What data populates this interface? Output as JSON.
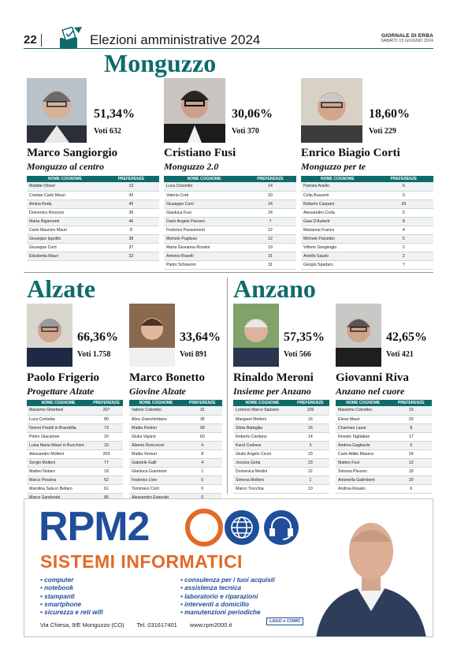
{
  "header": {
    "page_number": "22",
    "section_title": "Elezioni amministrative 2024",
    "masthead_name": "GIORNALE DI ERBA",
    "masthead_date": "SABATO 15 GIUGNO 2024"
  },
  "table_headers": {
    "name": "NOME COGNOME",
    "preferences": "PREFERENZE"
  },
  "monguzzo": {
    "title": "Monguzzo",
    "candidates": [
      {
        "name": "Marco Sangiorgio",
        "list": "Monguzzo al centro",
        "percentage": "51,34%",
        "votes": "Voti 632",
        "rows": [
          [
            "Matilde Oliveri",
            "13"
          ],
          [
            "Cristian Carlo Mauri",
            "43"
          ],
          [
            "Amina Roda",
            "40"
          ],
          [
            "Domenico Ronzoni",
            "36"
          ],
          [
            "Marta Rigamonti",
            "46"
          ],
          [
            "Carlo Maurizio Mauri",
            "8"
          ],
          [
            "Giuseppe Ippolito",
            "38"
          ],
          [
            "Giuseppe Corti",
            "37"
          ],
          [
            "Elisabetta Mauri",
            "33"
          ]
        ]
      },
      {
        "name": "Cristiano Fusi",
        "list": "Monguzzo 2.0",
        "percentage": "30,06%",
        "votes": "Voti 370",
        "rows": [
          [
            "Luca Colombo",
            "14"
          ],
          [
            "Valeria Corti",
            "20"
          ],
          [
            "Giuseppe Corti",
            "24"
          ],
          [
            "Gianluca Fusi",
            "24"
          ],
          [
            "Dario Angelo Panzeri",
            "7"
          ],
          [
            "Federica Passamonti",
            "22"
          ],
          [
            "Michele Pugliese",
            "12"
          ],
          [
            "Marta Giovanna Rossini",
            "19"
          ],
          [
            "Antonio Roselli",
            "31"
          ],
          [
            "Pietro Schiavoni",
            "31"
          ]
        ]
      },
      {
        "name": "Enrico Biagio Corti",
        "list": "Monguzzo per te",
        "percentage": "18,60%",
        "votes": "Voti 229",
        "rows": [
          [
            "Patrizia Anello",
            "6"
          ],
          [
            "Celia Busserti",
            "0"
          ],
          [
            "Roberto Caspani",
            "29"
          ],
          [
            "Alessandro Coda",
            "5"
          ],
          [
            "Gaia D'Auberti",
            "8"
          ],
          [
            "Marianna Franco",
            "4"
          ],
          [
            "Michele Palumbo",
            "5"
          ],
          [
            "Vittorio Sangiorgio",
            "2"
          ],
          [
            "Aniello Saudo",
            "2"
          ],
          [
            "Giorgio Spadaro",
            "7"
          ]
        ]
      }
    ]
  },
  "alzate": {
    "title": "Alzate",
    "candidates": [
      {
        "name": "Paolo Frigerio",
        "list": "Progettare Alzate",
        "percentage": "66,36%",
        "votes": "Voti 1.758",
        "rows": [
          [
            "Massimo Gherbesi",
            "207"
          ],
          [
            "Luca Corbetta",
            "80"
          ],
          [
            "Noemi Freddi in Brambilla",
            "73"
          ],
          [
            "Pietro Giacalone",
            "20"
          ],
          [
            "Luisa Maria Mauri in Bucchieri",
            "33"
          ],
          [
            "Alessandro Molteni",
            "209"
          ],
          [
            "Sergio Molteni",
            "77"
          ],
          [
            "Matteo Notaro",
            "18"
          ],
          [
            "Marco Pessina",
            "62"
          ],
          [
            "Marolina Sala in Bellaro",
            "61"
          ],
          [
            "Marco Sandonigi",
            "86"
          ]
        ]
      },
      {
        "name": "Marco Bonetto",
        "list": "Giovine Alzate",
        "percentage": "33,64%",
        "votes": "Voti 891",
        "rows": [
          [
            "Valerio Colombo",
            "31"
          ],
          [
            "Alice Gianchiottano",
            "36"
          ],
          [
            "Mattia Pedrini",
            "99"
          ],
          [
            "Giulia Viganò",
            "60"
          ],
          [
            "Alberto Roncoroni",
            "4"
          ],
          [
            "Mattia Venturi",
            "8"
          ],
          [
            "Gabriele Galli",
            "4"
          ],
          [
            "Gianluca Guerinoni",
            "1"
          ],
          [
            "Federico Livio",
            "0"
          ],
          [
            "Tommaso Corti",
            "0"
          ],
          [
            "Alessandro Esposito",
            "0"
          ],
          [
            "Davide Nicoli",
            "0"
          ]
        ]
      }
    ]
  },
  "anzano": {
    "title": "Anzano",
    "candidates": [
      {
        "name": "Rinaldo Meroni",
        "list": "Insieme per Anzano",
        "percentage": "57,35%",
        "votes": "Voti 566",
        "rows": [
          [
            "Lorenzo Marco Salzano",
            "109"
          ],
          [
            "Margaret Molteni",
            "16"
          ],
          [
            "Silvia Battaglia",
            "16"
          ],
          [
            "Roberto Cardano",
            "14"
          ],
          [
            "Karol Cedrara",
            "3"
          ],
          [
            "Giulio Angelo Cicori",
            "29"
          ],
          [
            "Jessica Gorla",
            "23"
          ],
          [
            "Domenica Medini",
            "22"
          ],
          [
            "Simona Molteni",
            "1"
          ],
          [
            "Marco Trocchia",
            "10"
          ]
        ]
      },
      {
        "name": "Giovanni Riva",
        "list": "Anzano nel cuore",
        "percentage": "42,65%",
        "votes": "Voti 421",
        "rows": [
          [
            "Massimo Colombo",
            "19"
          ],
          [
            "Elena Mauri",
            "20"
          ],
          [
            "Charmee Lazar",
            "8"
          ],
          [
            "Renato Tagliabue",
            "17"
          ],
          [
            "Andrea Gagliardo",
            "5"
          ],
          [
            "Carlo Attilio Mazera",
            "24"
          ],
          [
            "Matteo Fusi",
            "12"
          ],
          [
            "Simona Pleuren",
            "18"
          ],
          [
            "Antonella Galimberti",
            "20"
          ],
          [
            "Andrea Rosato",
            "6"
          ]
        ]
      }
    ]
  },
  "ad": {
    "brand_left": "RPM2",
    "brand_subtitle": "SISTEMI INFORMATICI",
    "services_left": [
      "computer",
      "notebook",
      "stampanti",
      "smartphone",
      "sicurezza e reti wifi"
    ],
    "services_right": [
      "consulenza per i tuoi acquisti",
      "assistenza tecnica",
      "laboratorio e riparazioni",
      "interventi a domicilio",
      "manutenzioni periodiche"
    ],
    "address": "Via Chiesa, 9/E Monguzzo (CO)",
    "phone": "Tel. 031617401",
    "website": "www.rpm2000.it",
    "partner_logo": "LAGO e COMO",
    "colors": {
      "blue": "#1f4e9a",
      "orange": "#e36a26",
      "teal": "#0f6b6b"
    }
  }
}
